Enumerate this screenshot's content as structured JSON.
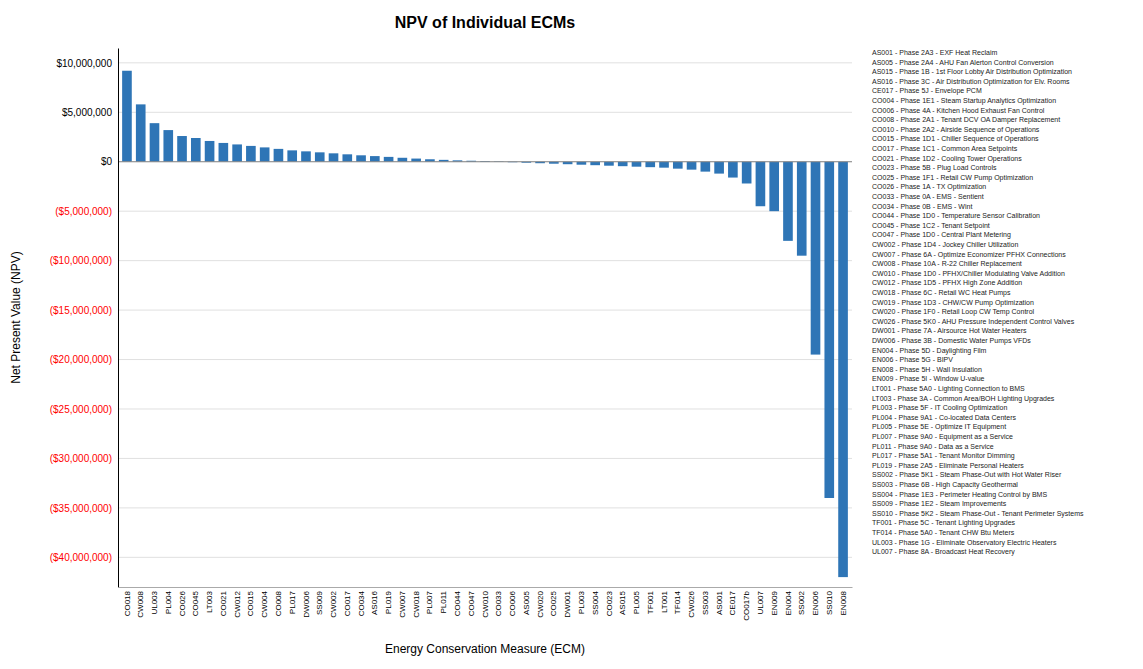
{
  "chart_data": {
    "type": "bar",
    "title": "NPV of Individual ECMs",
    "xlabel": "Energy Conservation Measure (ECM)",
    "ylabel": "Net Present Value (NPV)",
    "color": "#2E75B6",
    "grid": true,
    "categories": [
      "CO018",
      "CW008",
      "UL003",
      "PL004",
      "CO026",
      "CO045",
      "LT003",
      "CO021",
      "CW012",
      "CO015",
      "CW004",
      "CO008",
      "PL017",
      "DW006",
      "SS009",
      "CW002",
      "CO017",
      "CO034",
      "AS016",
      "PL019",
      "CW007",
      "CW018",
      "PL007",
      "PL011",
      "CO044",
      "CO047",
      "CW010",
      "CO033",
      "CO006",
      "AS005",
      "CW020",
      "CO025",
      "DW001",
      "PL003",
      "SS004",
      "CO023",
      "AS015",
      "PL005",
      "TF001",
      "LT001",
      "TF014",
      "CW026",
      "SS003",
      "AS001",
      "CE017",
      "CO017b",
      "UL007",
      "EN009",
      "EN004",
      "SS002",
      "EN006",
      "SS010",
      "EN008"
    ],
    "values": [
      9200000,
      5800000,
      3900000,
      3200000,
      2600000,
      2400000,
      2100000,
      1900000,
      1750000,
      1600000,
      1450000,
      1300000,
      1150000,
      1050000,
      950000,
      850000,
      750000,
      650000,
      570000,
      490000,
      400000,
      320000,
      250000,
      190000,
      140000,
      100000,
      70000,
      40000,
      -50000,
      -100000,
      -150000,
      -200000,
      -250000,
      -300000,
      -350000,
      -400000,
      -450000,
      -500000,
      -550000,
      -600000,
      -700000,
      -800000,
      -1000000,
      -1200000,
      -1600000,
      -2200000,
      -4500000,
      -5000000,
      -8000000,
      -9500000,
      -19500000,
      -34000000,
      -42000000
    ],
    "ylim": [
      -43000000,
      11500000
    ],
    "yticks": [
      {
        "value": 10000000,
        "label": "$10,000,000"
      },
      {
        "value": 5000000,
        "label": "$5,000,000"
      },
      {
        "value": 0,
        "label": "$0"
      },
      {
        "value": -5000000,
        "label": "($5,000,000)"
      },
      {
        "value": -10000000,
        "label": "($10,000,000)"
      },
      {
        "value": -15000000,
        "label": "($15,000,000)"
      },
      {
        "value": -20000000,
        "label": "($20,000,000)"
      },
      {
        "value": -25000000,
        "label": "($25,000,000)"
      },
      {
        "value": -30000000,
        "label": "($30,000,000)"
      },
      {
        "value": -35000000,
        "label": "($35,000,000)"
      },
      {
        "value": -40000000,
        "label": "($40,000,000)"
      }
    ],
    "annotations": [
      "AS001 - Phase 2A3 - EXF Heat Reclaim",
      "AS005 - Phase 2A4 - AHU Fan Alerton Control Conversion",
      "AS015 - Phase 1B - 1st Floor Lobby Air Distribution Optimization",
      "AS016 - Phase 3C - Air Distribution Optimization for Elv. Rooms",
      "CE017 - Phase 5J - Envelope PCM",
      "CO004 - Phase 1E1 - Steam Startup Analytics Optimization",
      "CO006 - Phase 4A - Kitchen Hood Exhaust Fan Control",
      "CO008 - Phase 2A1 - Tenant DCV OA Damper Replacement",
      "CO010 - Phase 2A2 - Airside Sequence of Operations",
      "CO015 - Phase 1D1 - Chiller Sequence of Operations",
      "CO017 - Phase 1C1 - Common Area Setpoints",
      "CO021 - Phase 1D2 - Cooling Tower Operations",
      "CO023 - Phase 5B - Plug Load Controls",
      "CO025 - Phase 1F1 - Retail CW Pump Optimization",
      "CO026 - Phase 1A - TX Optimization",
      "CO033 - Phase 0A - EMS - Sentient",
      "CO034 - Phase 0B - EMS - Wint",
      "CO044 - Phase 1D0 - Temperature Sensor Calibration",
      "CO045 - Phase 1C2 - Tenant Setpoint",
      "CO047 - Phase 1D0 - Central Plant Metering",
      "CW002 - Phase 1D4 - Jockey Chiller Utilization",
      "CW007 - Phase 6A - Optimize Economizer PFHX Connections",
      "CW008 - Phase 10A - R-22 Chiller Replacement",
      "CW010 - Phase 1D0 - PFHX/Chiller Modulating Valve Addition",
      "CW012 - Phase 1D5 - PFHX High Zone Addition",
      "CW018 - Phase 6C - Retail WC Heat Pumps",
      "CW019 - Phase 1D3 - CHW/CW Pump Optimization",
      "CW020 - Phase 1F0 - Retail Loop CW Temp Control",
      "CW026 - Phase 5K0 - AHU Pressure Independent Control Valves",
      "DW001 - Phase 7A - Airsource Hot Water Heaters",
      "DW006 - Phase 3B - Domestic Water Pumps VFDs",
      "EN004 - Phase 5D - Daylighting Film",
      "EN006 - Phase 5G - BIPV",
      "EN008 - Phase 5H - Wall Insulation",
      "EN009 - Phase 5I - Window U-value",
      "LT001 - Phase 5A0 - Lighting Connection to BMS",
      "LT003 - Phase 3A - Common Area/BOH Lighting Upgrades",
      "PL003 - Phase 5F - IT Cooling Optimization",
      "PL004 - Phase 9A1 - Co-located Data Centers",
      "PL005 - Phase 5E - Optimize IT Equipment",
      "PL007 - Phase 9A0 - Equipment as a Service",
      "PL011 - Phase 9A0 - Data as a Service",
      "PL017 - Phase 5A1 - Tenant Monitor Dimming",
      "PL019 - Phase 2A5 - Eliminate Personal Heaters",
      "SS002 - Phase 5K1 - Steam Phase-Out with Hot Water Riser",
      "SS003 - Phase 6B - High Capacity Geothermal",
      "SS004 - Phase 1E3 - Perimeter Heating Control by BMS",
      "SS009 - Phase 1E2 - Steam Improvements",
      "SS010 - Phase 5K2 - Steam Phase-Out - Tenant Perimeter Systems",
      "TF001 - Phase 5C - Tenant Lighting Upgrades",
      "TF014 - Phase 5A0 - Tenant CHW Btu Meters",
      "UL003 - Phase 1G - Eliminate Observatory Electric Heaters",
      "UL007 - Phase 8A - Broadcast Heat Recovery"
    ]
  }
}
